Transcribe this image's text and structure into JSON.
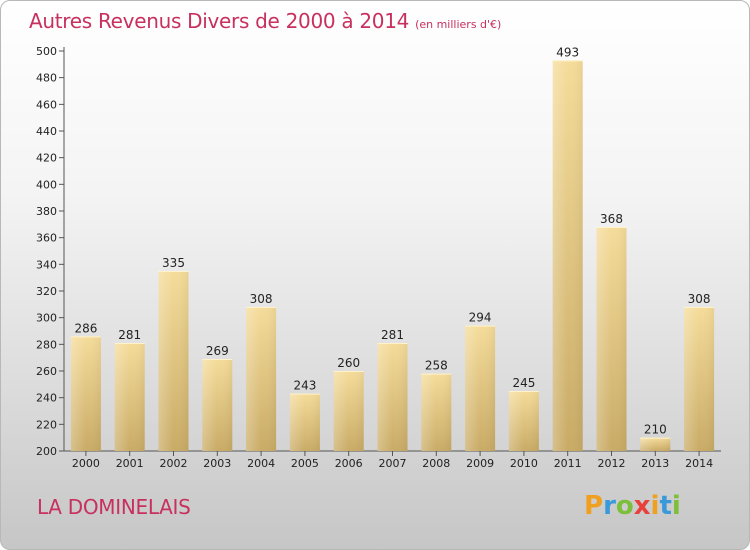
{
  "title": {
    "main": "Autres Revenus Divers de 2000 à 2014",
    "unit": "(en milliers d'€)"
  },
  "commune": "LA DOMINELAIS",
  "logo": {
    "letters": [
      "P",
      "r",
      "o",
      "x",
      "i",
      "t",
      "i"
    ],
    "colors": [
      "#f0a020",
      "#3a9ad9",
      "#7cbf3a",
      "#e8413c",
      "#f0a020",
      "#3a9ad9",
      "#7cbf3a"
    ]
  },
  "colors": {
    "accent": "#c8305f",
    "bar_light": "#f5dc9a",
    "bar_dark": "#c9ab66"
  },
  "chart_data": {
    "type": "bar",
    "categories": [
      "2000",
      "2001",
      "2002",
      "2003",
      "2004",
      "2005",
      "2006",
      "2007",
      "2008",
      "2009",
      "2010",
      "2011",
      "2012",
      "2013",
      "2014"
    ],
    "values": [
      286,
      281,
      335,
      269,
      308,
      243,
      260,
      281,
      258,
      294,
      245,
      493,
      368,
      210,
      308
    ],
    "ylim": [
      200,
      500
    ],
    "yticks": [
      200,
      220,
      240,
      260,
      280,
      300,
      320,
      340,
      360,
      380,
      400,
      420,
      440,
      460,
      480,
      500
    ],
    "grid": false
  }
}
